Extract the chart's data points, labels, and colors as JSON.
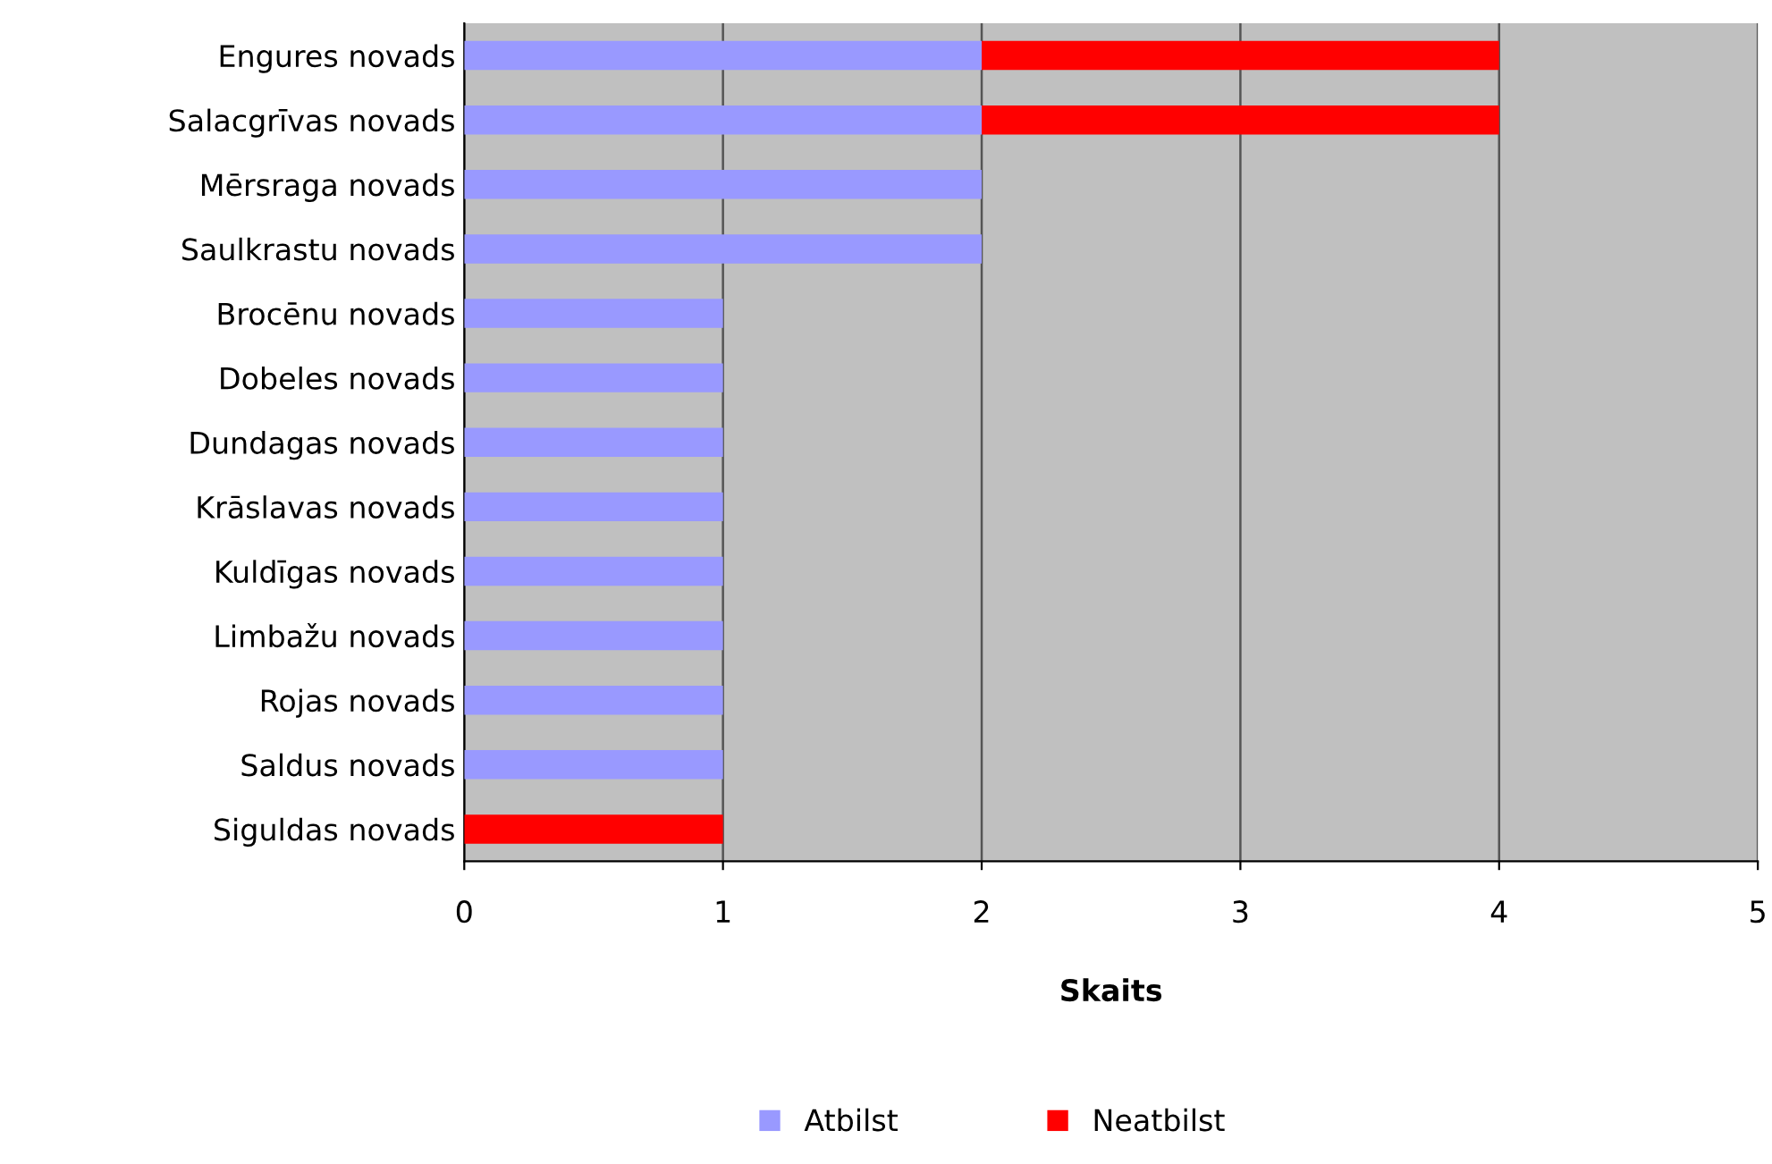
{
  "chart_data": {
    "type": "bar",
    "orientation": "horizontal",
    "stacked": true,
    "xlabel": "Skaits",
    "categories": [
      "Engures novads",
      "Salacgrīvas novads",
      "Mērsraga novads",
      "Saulkrastu novads",
      "Brocēnu novads",
      "Dobeles novads",
      "Dundagas novads",
      "Krāslavas novads",
      "Kuldīgas novads",
      "Limbažu novads",
      "Rojas novads",
      "Saldus novads",
      "Siguldas novads"
    ],
    "series": [
      {
        "name": "Atbilst",
        "color": "#9999ff",
        "values": [
          2,
          2,
          2,
          2,
          1,
          1,
          1,
          1,
          1,
          1,
          1,
          1,
          0
        ]
      },
      {
        "name": "Neatbilst",
        "color": "#ff0000",
        "values": [
          2,
          2,
          0,
          0,
          0,
          0,
          0,
          0,
          0,
          0,
          0,
          0,
          1
        ]
      }
    ],
    "xlim": [
      0,
      5
    ],
    "xticks": [
      0,
      1,
      2,
      3,
      4,
      5
    ],
    "grid": "x",
    "legend": "bottom"
  }
}
